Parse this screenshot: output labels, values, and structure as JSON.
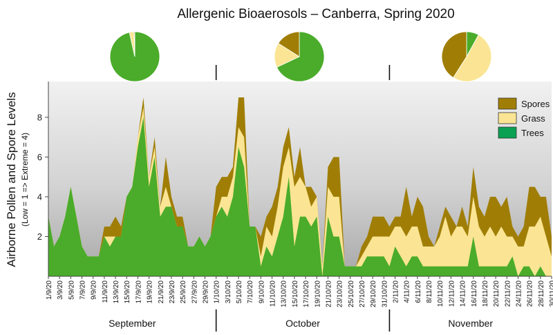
{
  "chart_data": {
    "type": "area",
    "stacked": true,
    "title": "Allergenic Bioaerosols – Canberra, Spring 2020",
    "ylabel": "Airborne Pollen and Spore Levels",
    "ylabel_sub": "(Low = 1 => Extreme = 4)",
    "ylim": [
      0,
      9.8
    ],
    "yticks": [
      "2",
      "4",
      "6",
      "8"
    ],
    "legend_position": "top-right",
    "x": [
      "1/9/20",
      "2/9/20",
      "3/9/20",
      "4/9/20",
      "5/9/20",
      "6/9/20",
      "7/9/20",
      "8/9/20",
      "9/9/20",
      "10/9/20",
      "11/9/20",
      "12/9/20",
      "13/9/20",
      "14/9/20",
      "15/9/20",
      "16/9/20",
      "17/9/20",
      "18/9/20",
      "19/9/20",
      "20/9/20",
      "21/9/20",
      "22/9/20",
      "23/9/20",
      "24/9/20",
      "25/9/20",
      "26/9/20",
      "27/9/20",
      "28/9/20",
      "29/9/20",
      "30/9/20",
      "1/10/20",
      "2/10/20",
      "3/10/20",
      "4/10/20",
      "5/10/20",
      "6/10/20",
      "7/10/20",
      "8/10/20",
      "9/10/20",
      "10/10/20",
      "11/10/20",
      "12/10/20",
      "13/10/20",
      "14/10/20",
      "15/10/20",
      "16/10/20",
      "17/10/20",
      "18/10/20",
      "19/10/20",
      "20/10/20",
      "21/10/20",
      "22/10/20",
      "23/10/20",
      "24/10/20",
      "25/10/20",
      "26/10/20",
      "27/10/20",
      "28/10/20",
      "29/10/20",
      "30/10/20",
      "31/10/20",
      "1/11/20",
      "2/11/20",
      "3/11/20",
      "4/11/20",
      "5/11/20",
      "6/11/20",
      "7/11/20",
      "8/11/20",
      "9/11/20",
      "10/11/20",
      "11/11/20",
      "12/11/20",
      "13/11/20",
      "14/11/20",
      "15/11/20",
      "16/11/20",
      "17/11/20",
      "18/11/20",
      "19/11/20",
      "20/11/20",
      "21/11/20",
      "22/11/20",
      "23/11/20",
      "24/11/20",
      "25/11/20",
      "26/11/20",
      "27/11/20",
      "28/11/20",
      "29/11/20",
      "30/11/20"
    ],
    "xtick_labels": [
      "1/9/20",
      "3/9/20",
      "5/9/20",
      "7/9/20",
      "9/9/20",
      "11/9/20",
      "13/9/20",
      "15/9/20",
      "17/9/20",
      "19/9/20",
      "21/9/20",
      "23/9/20",
      "25/9/20",
      "27/9/20",
      "29/9/20",
      "1/10/20",
      "3/10/20",
      "5/10/20",
      "7/10/20",
      "9/10/20",
      "11/10/20",
      "13/10/20",
      "15/10/20",
      "17/10/20",
      "19/10/20",
      "21/10/20",
      "23/10/20",
      "25/10/20",
      "27/10/20",
      "29/10/20",
      "31/10/20",
      "2/11/20",
      "4/11/20",
      "6/11/20",
      "8/11/20",
      "10/11/20",
      "12/11/20",
      "14/11/20",
      "16/11/20",
      "18/11/20",
      "20/11/20",
      "22/11/20",
      "24/11/20",
      "26/11/20",
      "28/11/20",
      "30/11/20"
    ],
    "series": [
      {
        "name": "Trees",
        "color": "#4aac2a",
        "values": [
          3,
          1.5,
          2,
          3,
          4.5,
          3,
          1.5,
          1,
          1,
          1,
          2,
          1.5,
          2,
          2,
          4,
          4.5,
          6.5,
          8,
          4.5,
          6,
          3,
          3.5,
          3.5,
          2.5,
          2.5,
          1.5,
          1.5,
          2,
          1.5,
          2,
          3,
          3.5,
          3,
          4,
          6.5,
          5.5,
          2.5,
          2.5,
          0.5,
          1.5,
          1,
          2,
          3,
          5,
          1.5,
          3,
          3,
          2.5,
          3,
          0,
          3,
          2,
          2,
          0.5,
          0.5,
          0.5,
          0.5,
          1,
          1,
          1,
          1,
          0.5,
          1.5,
          1,
          0.5,
          1,
          1,
          0.5,
          0.5,
          0.5,
          0.5,
          0.5,
          0.5,
          0.5,
          0.5,
          0.5,
          2,
          0.5,
          0.5,
          0.5,
          0.5,
          0.5,
          0.5,
          1,
          0,
          0.5,
          0.5,
          0,
          0.5,
          0,
          0
        ]
      },
      {
        "name": "Grass",
        "color": "#fbe594",
        "values": [
          0,
          0,
          0,
          0,
          0,
          0,
          0,
          0,
          0,
          0,
          0,
          0.5,
          0,
          0,
          0,
          0,
          0.5,
          0.5,
          0.5,
          0.5,
          0.5,
          1,
          0,
          0,
          0,
          0,
          0,
          0,
          0,
          0,
          0,
          0.5,
          1,
          1,
          1,
          1.5,
          0,
          0,
          0.5,
          1,
          1,
          1.5,
          2.5,
          1.5,
          3,
          2,
          1.5,
          1,
          1,
          0.5,
          1.5,
          2,
          2,
          0,
          0,
          0,
          0.5,
          0.5,
          1,
          1,
          1,
          1.5,
          1,
          1.5,
          1.5,
          1.5,
          1.5,
          1,
          1,
          1,
          1.5,
          2.5,
          1.5,
          2,
          2,
          1.5,
          2,
          2,
          1.5,
          2,
          1.5,
          2,
          1.5,
          1,
          1.5,
          1,
          2,
          2.5,
          2.5,
          2,
          1
        ]
      },
      {
        "name": "Spores",
        "color": "#a07e06",
        "values": [
          0,
          0,
          0,
          0,
          0,
          0,
          0,
          0,
          0,
          0,
          0.5,
          0.5,
          1,
          0.5,
          0,
          0,
          0,
          0.5,
          0,
          0.5,
          0,
          1.5,
          0.5,
          0.5,
          0.5,
          0,
          0,
          0,
          0,
          0,
          1.5,
          1,
          1,
          0.5,
          1.5,
          2,
          0,
          0,
          1,
          0.5,
          1.5,
          1,
          1,
          1,
          0.5,
          1.5,
          0,
          1,
          0,
          0,
          1,
          2,
          2,
          0,
          0,
          0,
          0.5,
          0.5,
          1,
          1,
          1,
          0.5,
          0.5,
          0.5,
          2.5,
          0.5,
          1.5,
          2,
          0.5,
          0,
          0.5,
          0.5,
          1,
          0,
          1,
          0.5,
          1.5,
          1,
          1,
          1.5,
          2,
          1,
          2,
          0.5,
          0.5,
          1,
          2,
          2,
          1,
          2,
          1
        ]
      }
    ],
    "month_labels": [
      "September",
      "October",
      "November"
    ],
    "monthly_composition": [
      {
        "month": "September",
        "slices": [
          {
            "name": "Trees",
            "value": 97
          },
          {
            "name": "Grass",
            "value": 3
          },
          {
            "name": "Spores",
            "value": 0.5
          }
        ]
      },
      {
        "month": "October",
        "slices": [
          {
            "name": "Trees",
            "value": 68
          },
          {
            "name": "Grass",
            "value": 16
          },
          {
            "name": "Spores",
            "value": 16
          }
        ]
      },
      {
        "month": "November",
        "slices": [
          {
            "name": "Trees",
            "value": 8
          },
          {
            "name": "Grass",
            "value": 51
          },
          {
            "name": "Spores",
            "value": 41
          }
        ]
      }
    ]
  }
}
